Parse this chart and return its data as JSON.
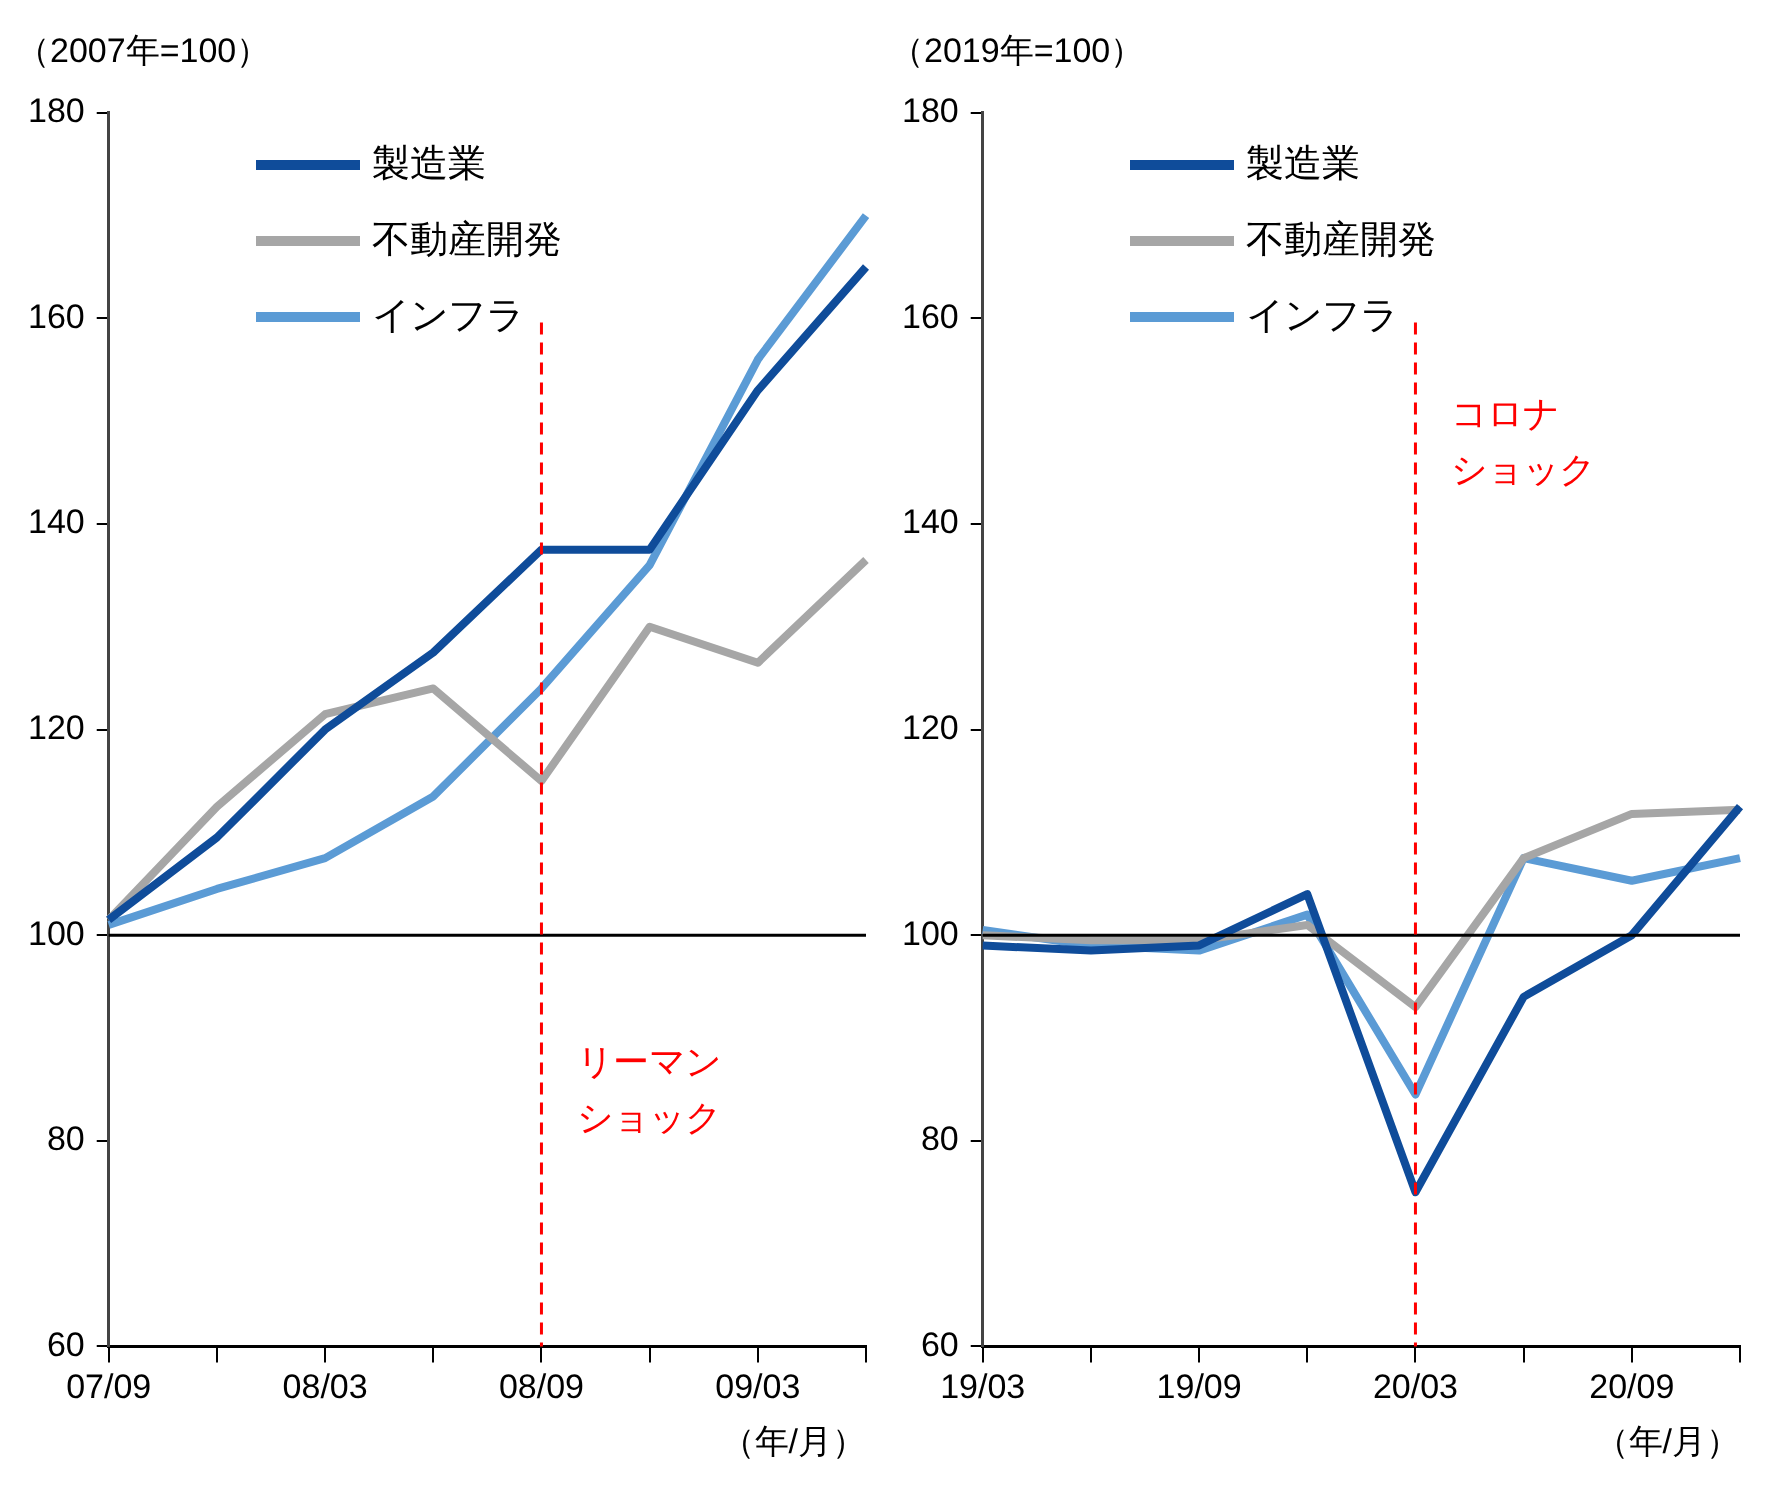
{
  "chart_data": [
    {
      "type": "line",
      "ylabel": "（2007年=100）",
      "xlabel": "（年/月）",
      "categories": [
        "07/09",
        null,
        "08/03",
        null,
        "08/09",
        null,
        "09/03",
        null
      ],
      "ylim": [
        60,
        180
      ],
      "yticks": [
        60,
        80,
        100,
        120,
        140,
        160,
        180
      ],
      "grid": false,
      "legend": "top left",
      "marker": "none",
      "line_style": "solid",
      "series": [
        {
          "name": "製造業",
          "color": "#0f4c9a",
          "values": [
            101.5,
            109.5,
            120,
            127.5,
            137.5,
            137.5,
            153,
            165
          ]
        },
        {
          "name": "不動産開発",
          "color": "#a6a6a6",
          "values": [
            101.5,
            112.5,
            121.5,
            124,
            115,
            130,
            126.5,
            136.5
          ]
        },
        {
          "name": "インフラ",
          "color": "#5b9bd5",
          "values": [
            101,
            104.5,
            107.5,
            113.5,
            124,
            136,
            156,
            170
          ]
        }
      ],
      "ref_lines": [
        {
          "axis": "y",
          "value": 100,
          "color": "#000000",
          "line_style": "solid"
        },
        {
          "axis": "x",
          "value": "08/09",
          "label": "リーマンショック",
          "color": "#ff0000",
          "line_style": "dashed"
        }
      ]
    },
    {
      "type": "line",
      "ylabel": "（2019年=100）",
      "xlabel": "（年/月）",
      "categories": [
        "19/03",
        null,
        "19/09",
        null,
        "20/03",
        null,
        "20/09",
        null
      ],
      "ylim": [
        60,
        180
      ],
      "yticks": [
        60,
        80,
        100,
        120,
        140,
        160,
        180
      ],
      "grid": false,
      "legend": "top left",
      "marker": "none",
      "line_style": "solid",
      "series": [
        {
          "name": "製造業",
          "color": "#0f4c9a",
          "values": [
            99,
            98.5,
            99,
            104,
            75,
            94,
            100,
            112.5
          ]
        },
        {
          "name": "不動産開発",
          "color": "#a6a6a6",
          "values": [
            100,
            99.5,
            99.5,
            101,
            93,
            107.5,
            111.8,
            112.2
          ]
        },
        {
          "name": "インフラ",
          "color": "#5b9bd5",
          "values": [
            100.5,
            99,
            98.5,
            102,
            84.5,
            107.5,
            105.3,
            107.5
          ]
        }
      ],
      "ref_lines": [
        {
          "axis": "y",
          "value": 100,
          "color": "#000000",
          "line_style": "solid"
        },
        {
          "axis": "x",
          "value": "20/03",
          "label": "コロナショック",
          "color": "#ff0000",
          "line_style": "dashed"
        }
      ]
    }
  ]
}
